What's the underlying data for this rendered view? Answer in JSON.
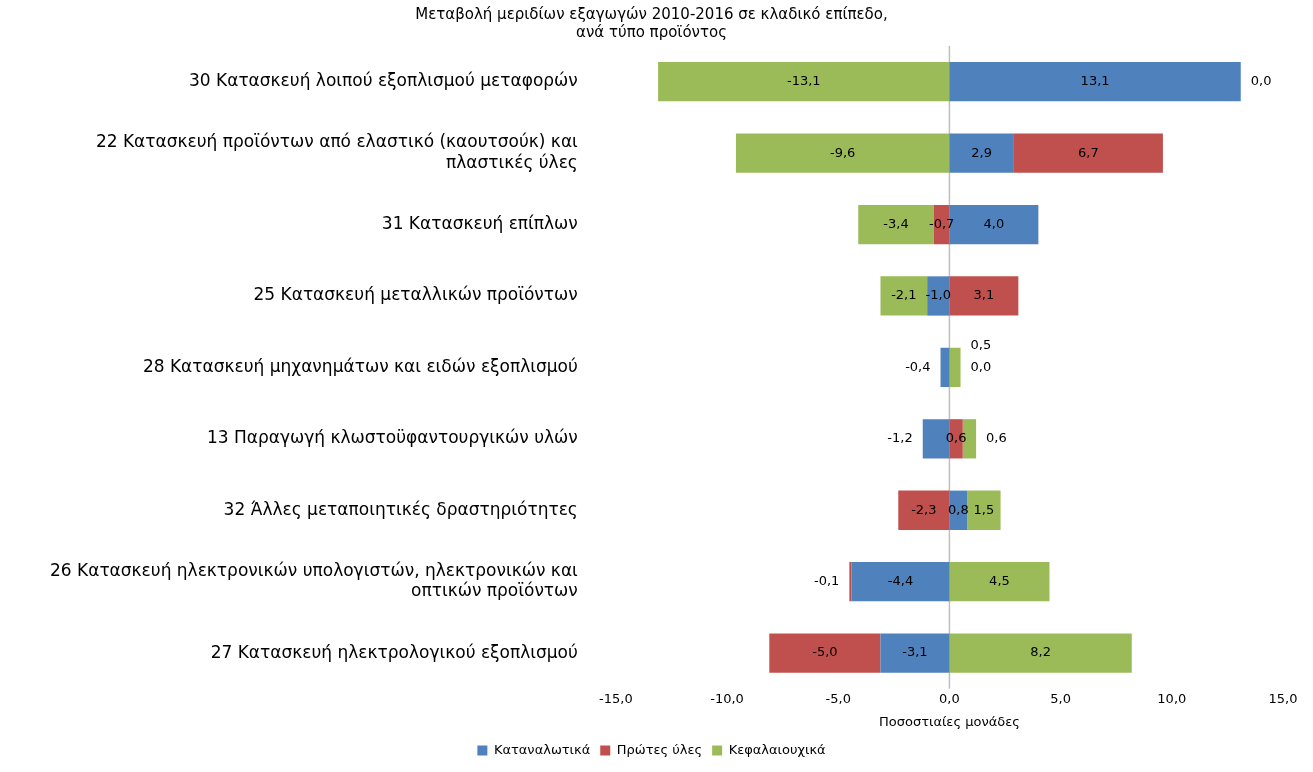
{
  "chart_data": {
    "type": "bar",
    "orientation": "horizontal",
    "stacked": true,
    "title": "Μεταβολή μεριδίων εξαγωγών 2010-2016 σε κλαδικό επίπεδο, ανά τύπο προϊόντος",
    "xlabel": "Ποσοστιαίες μονάδες",
    "categories": [
      "30 Κατασκευή λοιπού εξοπλισμού μεταφορών",
      "22 Κατασκευή προϊόντων από ελαστικό (καουτσούκ) και πλαστικές ύλες",
      "31 Κατασκευή επίπλων",
      "25 Κατασκευή μεταλλικών προϊόντων",
      "28 Κατασκευή μηχανημάτων και ειδών εξοπλισμού",
      "13 Παραγωγή κλωστοϋφαντουργικών υλών",
      "32 Άλλες μεταποιητικές δραστηριότητες",
      "26 Κατασκευή ηλεκτρονικών υπολογιστών, ηλεκτρονικών και οπτικών προϊόντων",
      "27 Κατασκευή ηλεκτρολογικού εξοπλισμού"
    ],
    "series": [
      {
        "name": "Καταναλωτικά",
        "color": "#4f81bd",
        "values": [
          13.1,
          2.9,
          4.0,
          -1.0,
          -0.4,
          -1.2,
          0.8,
          -4.4,
          -3.1
        ],
        "value_labels": [
          "13,1",
          "2,9",
          "4,0",
          "-1,0",
          "-0,4",
          "-1,2",
          "0,8",
          "-4,4",
          "-3,1"
        ]
      },
      {
        "name": "Πρώτες ύλες",
        "color": "#c0504d",
        "values": [
          0.0,
          6.7,
          -0.7,
          3.1,
          0.0,
          0.6,
          -2.3,
          -0.1,
          -5.0
        ],
        "value_labels": [
          "0,0",
          "6,7",
          "-0,7",
          "3,1",
          "0,0",
          "0,6",
          "-2,3",
          "-0,1",
          "-5,0"
        ]
      },
      {
        "name": "Κεφαλαιουχικά",
        "color": "#9bbb59",
        "values": [
          -13.1,
          -9.6,
          -3.4,
          -2.1,
          0.5,
          0.6,
          1.5,
          4.5,
          8.2
        ],
        "value_labels": [
          "-13,1",
          "-9,6",
          "-3,4",
          "-2,1",
          "0,5",
          "0,6",
          "1,5",
          "4,5",
          "8,2"
        ]
      }
    ],
    "xlim": [
      -15,
      15
    ],
    "xticks": [
      {
        "value": -15,
        "label": "-15,0"
      },
      {
        "value": -10,
        "label": "-10,0"
      },
      {
        "value": -5,
        "label": "-5,0"
      },
      {
        "value": 0,
        "label": "0,0"
      },
      {
        "value": 5,
        "label": "5,0"
      },
      {
        "value": 10,
        "label": "10,0"
      },
      {
        "value": 15,
        "label": "15,0"
      }
    ],
    "ref_lines": [
      {
        "axis": "x",
        "value": 0,
        "color": "#bfbfbf"
      }
    ],
    "legend": "bottom"
  }
}
